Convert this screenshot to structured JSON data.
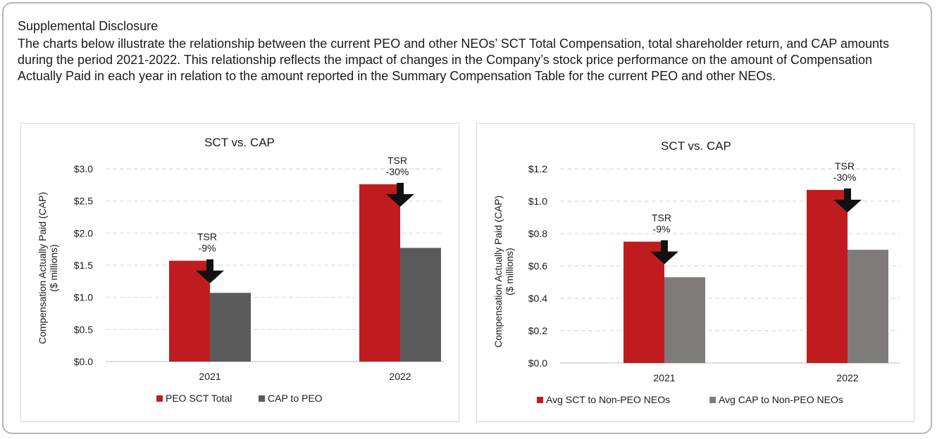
{
  "heading": "Supplemental Disclosure",
  "intro": "The charts below illustrate the relationship between the current PEO and other NEOs’ SCT Total Compensation, total shareholder return, and CAP amounts during the period 2021-2022.  This relationship reflects the impact of changes in the Company’s stock price performance on the amount of Compensation Actually Paid in each year in relation to the amount reported in the Summary Compensation Table for the current PEO and other NEOs.",
  "colors": {
    "sct": "#c01c1f",
    "cap_left": "#5b5b5b",
    "cap_right": "#807b7b",
    "grid": "#d9d9d9",
    "arrow": "#111111"
  },
  "chart_data": [
    {
      "type": "bar",
      "title": "SCT vs. CAP",
      "ylabel": [
        "Compensation Actually Paid (CAP)",
        "($ millions)"
      ],
      "categories": [
        "2021",
        "2022"
      ],
      "series": [
        {
          "name": "PEO SCT Total",
          "values": [
            1.57,
            2.76
          ]
        },
        {
          "name": "CAP to PEO",
          "values": [
            1.07,
            1.77
          ]
        }
      ],
      "ylim": [
        0,
        3.0
      ],
      "yticks": [
        0,
        0.5,
        1.0,
        1.5,
        2.0,
        2.5,
        3.0
      ],
      "ytick_labels": [
        "$0.0",
        "$0.5",
        "$1.0",
        "$1.5",
        "$2.0",
        "$2.5",
        "$3.0"
      ],
      "grid": true,
      "legend": "bottom",
      "annotations": [
        {
          "category": "2021",
          "label": "TSR",
          "value": "-9%"
        },
        {
          "category": "2022",
          "label": "TSR",
          "value": "-30%"
        }
      ]
    },
    {
      "type": "bar",
      "title": "SCT vs. CAP",
      "ylabel": [
        "Compensation Actually Paid (CAP)",
        "($ millions)"
      ],
      "categories": [
        "2021",
        "2022"
      ],
      "series": [
        {
          "name": "Avg SCT to Non-PEO NEOs",
          "values": [
            0.75,
            1.07
          ]
        },
        {
          "name": "Avg CAP to Non-PEO NEOs",
          "values": [
            0.53,
            0.7
          ]
        }
      ],
      "ylim": [
        0,
        1.2
      ],
      "yticks": [
        0,
        0.2,
        0.4,
        0.6,
        0.8,
        1.0,
        1.2
      ],
      "ytick_labels": [
        "$0.0",
        "$0.2",
        "$0.4",
        "$0.6",
        "$0.8",
        "$1.0",
        "$1.2"
      ],
      "grid": true,
      "legend": "bottom",
      "annotations": [
        {
          "category": "2021",
          "label": "TSR",
          "value": "-9%"
        },
        {
          "category": "2022",
          "label": "TSR",
          "value": "-30%"
        }
      ]
    }
  ]
}
